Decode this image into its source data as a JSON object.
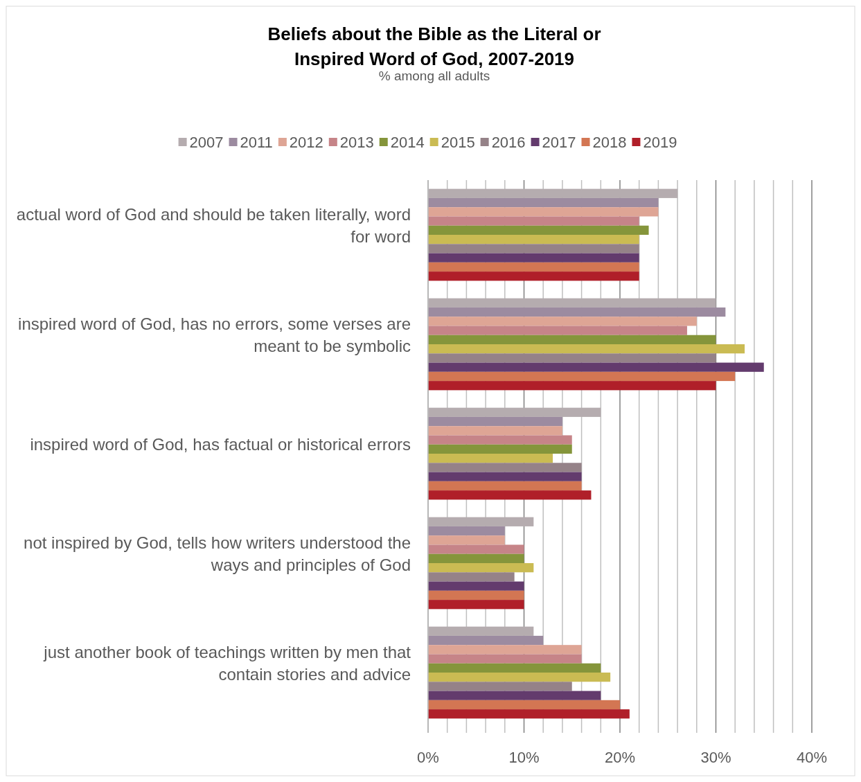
{
  "chart_data": {
    "type": "bar",
    "orientation": "horizontal",
    "title": "Beliefs about the Bible as the Literal or Inspired Word of God, 2007-2019",
    "subtitle": "% among all adults",
    "categories": [
      "actual word of God and should be taken literally, word for word",
      "inspired word of God, has no errors, some verses are meant to be symbolic",
      "inspired word of God, has factual or historical errors",
      "not inspired by God, tells how writers understood the ways and principles of God",
      "just another book of teachings written by men that contain stories and advice"
    ],
    "series": [
      {
        "name": "2007",
        "color": "#b5acaf",
        "values": [
          26,
          30,
          18,
          11,
          11
        ]
      },
      {
        "name": "2011",
        "color": "#9c8ba0",
        "values": [
          24,
          31,
          14,
          8,
          12
        ]
      },
      {
        "name": "2012",
        "color": "#dea595",
        "values": [
          24,
          28,
          14,
          8,
          16
        ]
      },
      {
        "name": "2013",
        "color": "#c68488",
        "values": [
          22,
          27,
          15,
          10,
          16
        ]
      },
      {
        "name": "2014",
        "color": "#85953b",
        "values": [
          23,
          30,
          15,
          10,
          18
        ]
      },
      {
        "name": "2015",
        "color": "#cabb53",
        "values": [
          22,
          33,
          13,
          11,
          19
        ]
      },
      {
        "name": "2016",
        "color": "#958288",
        "values": [
          22,
          30,
          16,
          9,
          15
        ]
      },
      {
        "name": "2017",
        "color": "#633b6d",
        "values": [
          22,
          35,
          16,
          10,
          18
        ]
      },
      {
        "name": "2018",
        "color": "#d37653",
        "values": [
          22,
          32,
          16,
          10,
          20
        ]
      },
      {
        "name": "2019",
        "color": "#b01f29",
        "values": [
          22,
          30,
          17,
          10,
          21
        ]
      }
    ],
    "xlim": [
      0,
      40
    ],
    "xticks": [
      {
        "value": 0,
        "label": "0%"
      },
      {
        "value": 2,
        "label": null
      },
      {
        "value": 4,
        "label": null
      },
      {
        "value": 6,
        "label": null
      },
      {
        "value": 8,
        "label": null
      },
      {
        "value": 10,
        "label": "10%"
      },
      {
        "value": 12,
        "label": null
      },
      {
        "value": 14,
        "label": null
      },
      {
        "value": 16,
        "label": null
      },
      {
        "value": 18,
        "label": null
      },
      {
        "value": 20,
        "label": "20%"
      },
      {
        "value": 22,
        "label": null
      },
      {
        "value": 24,
        "label": null
      },
      {
        "value": 26,
        "label": null
      },
      {
        "value": 28,
        "label": null
      },
      {
        "value": 30,
        "label": "30%"
      },
      {
        "value": 32,
        "label": null
      },
      {
        "value": 34,
        "label": null
      },
      {
        "value": 36,
        "label": null
      },
      {
        "value": 38,
        "label": null
      },
      {
        "value": 40,
        "label": "40%"
      }
    ],
    "grid": true,
    "legend": "top"
  }
}
